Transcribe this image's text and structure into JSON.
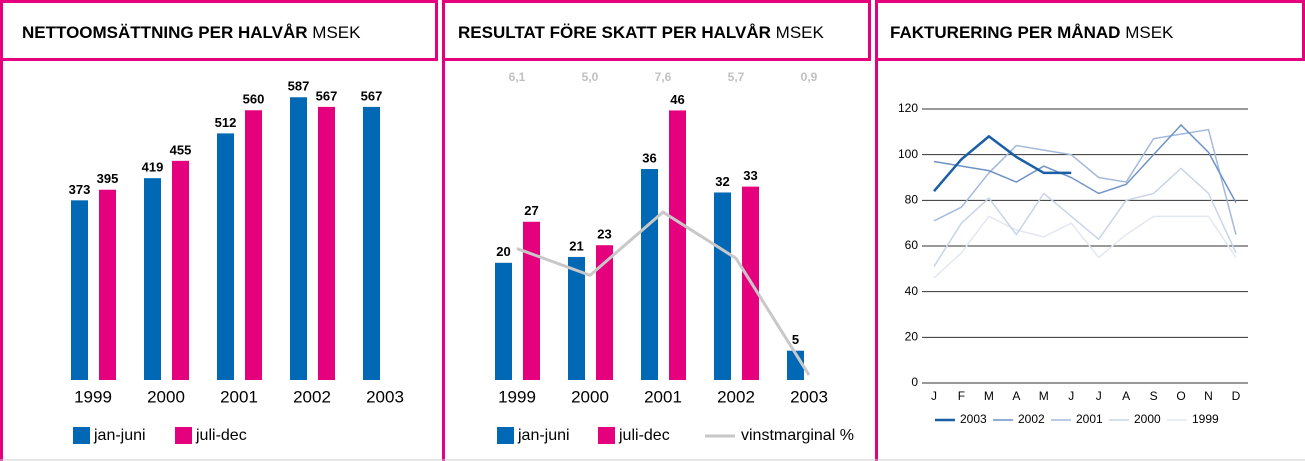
{
  "chart_data": [
    {
      "type": "bar",
      "title": "NETTOOMSÄTTNING PER HALVÅR",
      "unit": "MSEK",
      "categories": [
        "1999",
        "2000",
        "2001",
        "2002",
        "2003"
      ],
      "series": [
        {
          "name": "jan-juni",
          "color": "#0068b4",
          "values": [
            373,
            419,
            512,
            587,
            567
          ]
        },
        {
          "name": "juli-dec",
          "color": "#e5007d",
          "values": [
            395,
            455,
            560,
            567,
            null
          ]
        }
      ],
      "ylim": [
        0,
        600
      ],
      "legend": "bottom-left"
    },
    {
      "type": "bar",
      "title": "RESULTAT FÖRE SKATT PER HALVÅR",
      "unit": "MSEK",
      "categories": [
        "1999",
        "2000",
        "2001",
        "2002",
        "2003"
      ],
      "series": [
        {
          "name": "jan-juni",
          "color": "#0068b4",
          "values": [
            20,
            21,
            36,
            32,
            5
          ]
        },
        {
          "name": "juli-dec",
          "color": "#e5007d",
          "values": [
            27,
            23,
            46,
            33,
            null
          ]
        },
        {
          "name": "vinstmarginal %",
          "color": "#c8c8c8",
          "type": "line",
          "axis": "y2",
          "values": [
            6.1,
            5.0,
            7.6,
            5.7,
            0.9
          ],
          "value_labels": [
            "6,1",
            "5,0",
            "7,6",
            "5,7",
            "0,9"
          ]
        }
      ],
      "ylim": [
        0,
        50
      ],
      "y2lim": [
        0,
        12
      ],
      "legend": "bottom-left"
    },
    {
      "type": "line",
      "title": "FAKTURERING PER MÅNAD",
      "unit": "MSEK",
      "categories": [
        "J",
        "F",
        "M",
        "A",
        "M",
        "J",
        "J",
        "A",
        "S",
        "O",
        "N",
        "D"
      ],
      "series": [
        {
          "name": "2003",
          "color": "#1a5fa6",
          "values": [
            84,
            98,
            108,
            99,
            92,
            92,
            null,
            null,
            null,
            null,
            null,
            null
          ]
        },
        {
          "name": "2002",
          "color": "#6f93c6",
          "values": [
            97,
            95,
            93,
            88,
            95,
            90,
            83,
            87,
            100,
            113,
            101,
            79
          ]
        },
        {
          "name": "2001",
          "color": "#a3b9dc",
          "values": [
            71,
            77,
            92,
            104,
            102,
            100,
            90,
            88,
            107,
            109,
            111,
            65
          ]
        },
        {
          "name": "2000",
          "color": "#c9d4e8",
          "values": [
            51,
            70,
            81,
            65,
            83,
            73,
            63,
            80,
            83,
            94,
            83,
            57
          ]
        },
        {
          "name": "1999",
          "color": "#e2e7f1",
          "values": [
            46,
            57,
            73,
            67,
            64,
            70,
            55,
            65,
            73,
            73,
            73,
            55
          ]
        }
      ],
      "ylim": [
        0,
        120
      ],
      "yticks": [
        0,
        20,
        40,
        60,
        80,
        100,
        120
      ],
      "grid": true,
      "legend": "bottom-left"
    }
  ]
}
